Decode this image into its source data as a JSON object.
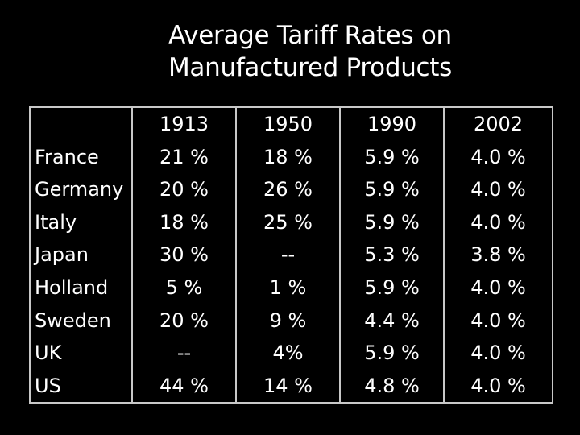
{
  "title": {
    "line1": "Average Tariff Rates on",
    "line2": "Manufactured Products"
  },
  "table": {
    "corner": "",
    "years": [
      "1913",
      "1950",
      "1990",
      "2002"
    ],
    "rows": [
      {
        "country": "France",
        "values": [
          "21 %",
          "18 %",
          "5.9 %",
          "4.0 %"
        ]
      },
      {
        "country": "Germany",
        "values": [
          "20 %",
          "26 %",
          "5.9 %",
          "4.0 %"
        ]
      },
      {
        "country": "Italy",
        "values": [
          "18 %",
          "25 %",
          "5.9 %",
          "4.0 %"
        ]
      },
      {
        "country": "Japan",
        "values": [
          "30 %",
          "--",
          "5.3 %",
          "3.8 %"
        ]
      },
      {
        "country": "Holland",
        "values": [
          "5 %",
          "1 %",
          "5.9 %",
          "4.0 %"
        ]
      },
      {
        "country": "Sweden",
        "values": [
          "20 %",
          "9 %",
          "4.4 %",
          "4.0 %"
        ]
      },
      {
        "country": "UK",
        "values": [
          "--",
          "4%",
          "5.9 %",
          "4.0 %"
        ]
      },
      {
        "country": "US",
        "values": [
          "44 %",
          "14 %",
          "4.8 %",
          "4.0 %"
        ]
      }
    ]
  },
  "colors": {
    "background": "#000000",
    "text": "#ffffff",
    "border": "#c8c8c8"
  }
}
